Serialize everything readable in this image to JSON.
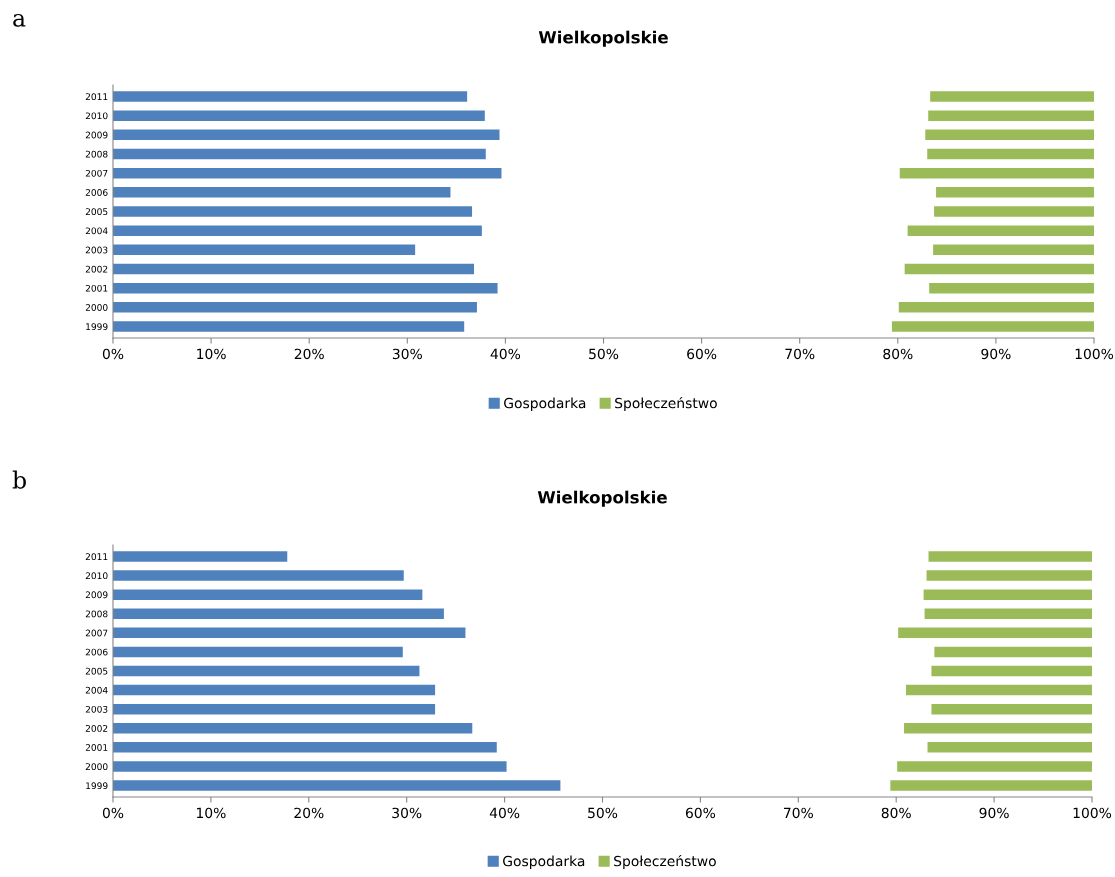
{
  "chart_data": [
    {
      "type": "bar",
      "orientation": "horizontal",
      "title": "Wielkopolskie",
      "annotations": [
        "a"
      ],
      "categories": [
        "2011",
        "2010",
        "2009",
        "2008",
        "2007",
        "2006",
        "2005",
        "2004",
        "2003",
        "2002",
        "2001",
        "2000",
        "1999"
      ],
      "series": [
        {
          "name": "Gospodarka",
          "color": "#4f81bd",
          "base": [
            0,
            0,
            0,
            0,
            0,
            0,
            0,
            0,
            0,
            0,
            0,
            0,
            0
          ],
          "values": [
            36.1,
            37.9,
            39.4,
            38.0,
            39.6,
            34.4,
            36.6,
            37.6,
            30.8,
            36.8,
            39.2,
            37.1,
            35.8
          ]
        },
        {
          "name": "Społeczeństwo",
          "color": "#9bbb59",
          "base": [
            83.3,
            83.1,
            82.8,
            83.0,
            80.2,
            83.9,
            83.7,
            81.0,
            83.6,
            80.7,
            83.2,
            80.1,
            79.4
          ],
          "values": [
            16.7,
            16.9,
            17.2,
            17.0,
            19.8,
            16.1,
            16.3,
            19.0,
            16.4,
            19.3,
            16.8,
            19.9,
            20.6
          ]
        }
      ],
      "xlim": [
        0,
        100
      ],
      "xticks": [
        {
          "value": 0,
          "label": "0%"
        },
        {
          "value": 10,
          "label": "10%"
        },
        {
          "value": 20,
          "label": "20%"
        },
        {
          "value": 30,
          "label": "30%"
        },
        {
          "value": 40,
          "label": "40%"
        },
        {
          "value": 50,
          "label": "50%"
        },
        {
          "value": 60,
          "label": "60%"
        },
        {
          "value": 70,
          "label": "70%"
        },
        {
          "value": 80,
          "label": "80%"
        },
        {
          "value": 90,
          "label": "90%"
        },
        {
          "value": 100,
          "label": "100%"
        }
      ],
      "grid": false,
      "legend": "bottom"
    },
    {
      "type": "bar",
      "orientation": "horizontal",
      "title": "Wielkopolskie",
      "annotations": [
        "b"
      ],
      "categories": [
        "2011",
        "2010",
        "2009",
        "2008",
        "2007",
        "2006",
        "2005",
        "2004",
        "2003",
        "2002",
        "2001",
        "2000",
        "1999"
      ],
      "series": [
        {
          "name": "Gospodarka",
          "color": "#4f81bd",
          "base": [
            0,
            0,
            0,
            0,
            0,
            0,
            0,
            0,
            0,
            0,
            0,
            0,
            0
          ],
          "values": [
            17.8,
            29.7,
            31.6,
            33.8,
            36.0,
            29.6,
            31.3,
            32.9,
            32.9,
            36.7,
            39.2,
            40.2,
            45.7
          ]
        },
        {
          "name": "Społeczeństwo",
          "color": "#9bbb59",
          "base": [
            83.3,
            83.1,
            82.8,
            82.9,
            80.2,
            83.9,
            83.6,
            81.0,
            83.6,
            80.8,
            83.2,
            80.1,
            79.4
          ],
          "values": [
            16.7,
            16.9,
            17.2,
            17.1,
            19.8,
            16.1,
            16.4,
            19.0,
            16.4,
            19.2,
            16.8,
            19.9,
            20.6
          ]
        }
      ],
      "xlim": [
        0,
        100
      ],
      "xticks": [
        {
          "value": 0,
          "label": "0%"
        },
        {
          "value": 10,
          "label": "10%"
        },
        {
          "value": 20,
          "label": "20%"
        },
        {
          "value": 30,
          "label": "30%"
        },
        {
          "value": 40,
          "label": "40%"
        },
        {
          "value": 50,
          "label": "50%"
        },
        {
          "value": 60,
          "label": "60%"
        },
        {
          "value": 70,
          "label": "70%"
        },
        {
          "value": 80,
          "label": "80%"
        },
        {
          "value": 90,
          "label": "90%"
        },
        {
          "value": 100,
          "label": "100%"
        }
      ],
      "grid": false,
      "legend": "bottom"
    }
  ]
}
